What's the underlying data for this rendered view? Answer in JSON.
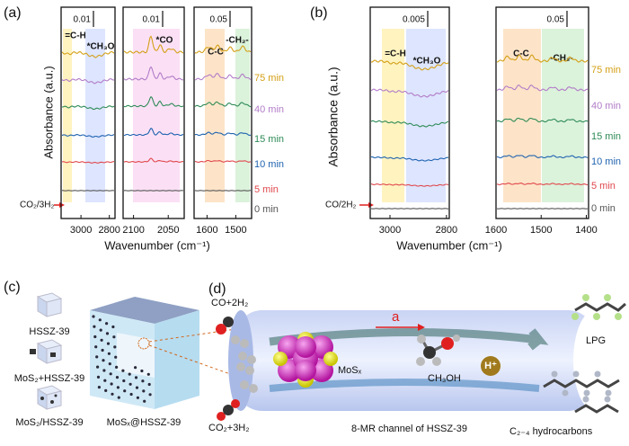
{
  "panel_a": {
    "label": "(a)",
    "y_label": "Absorbance (a.u.)",
    "x_label": "Wavenumber (cm⁻¹)",
    "gas": "CO₂/3H₂",
    "times": [
      {
        "name": "75 min",
        "color": "#d4a017"
      },
      {
        "name": "40 min",
        "color": "#b27cc8"
      },
      {
        "name": "15 min",
        "color": "#2e8b57"
      },
      {
        "name": "10 min",
        "color": "#1f63b0"
      },
      {
        "name": "5 min",
        "color": "#e0474c"
      },
      {
        "name": "0 min",
        "color": "#555555"
      }
    ],
    "subplots": [
      {
        "xlim": [
          3140,
          2760
        ],
        "xticks": [
          3000,
          2800
        ],
        "scale": "0.01",
        "bands": [
          "=C-H",
          "*CH₃O"
        ]
      },
      {
        "xlim": [
          2115,
          2027
        ],
        "xticks": [
          2100,
          2050
        ],
        "scale": "0.01",
        "bands": [
          "*CO"
        ]
      },
      {
        "xlim": [
          1645,
          1445
        ],
        "xticks": [
          1600,
          1500
        ],
        "scale": "0.05",
        "bands": [
          "C-C",
          "-CH₂-"
        ]
      }
    ]
  },
  "panel_b": {
    "label": "(b)",
    "y_label": "Absorbance (a.u.)",
    "x_label": "Wavenumber (cm⁻¹)",
    "gas": "CO/2H₂",
    "times": [
      {
        "name": "75 min",
        "color": "#d4a017"
      },
      {
        "name": "40 min",
        "color": "#b27cc8"
      },
      {
        "name": "15 min",
        "color": "#2e8b57"
      },
      {
        "name": "10 min",
        "color": "#1f63b0"
      },
      {
        "name": "5 min",
        "color": "#e0474c"
      },
      {
        "name": "0 min",
        "color": "#555555"
      }
    ],
    "subplots": [
      {
        "xlim": [
          3070,
          2790
        ],
        "xticks": [
          3000,
          2800
        ],
        "scale": "0.005",
        "bands": [
          "=C-H",
          "*CH₃O"
        ]
      },
      {
        "xlim": [
          1600,
          1395
        ],
        "xticks": [
          1600,
          1500,
          1400
        ],
        "scale": "0.05",
        "bands": [
          "C-C",
          "-CH₂-"
        ]
      }
    ]
  },
  "panel_c": {
    "label": "(c)",
    "items": [
      "HSSZ-39",
      "MoS₂+HSSZ-39",
      "MoS₂/HSSZ-39"
    ],
    "big": "MoSₓ@HSSZ-39"
  },
  "panel_d": {
    "label": "(d)",
    "feed_top": "CO+2H₂",
    "feed_bottom": "CO₂+3H₂",
    "arrow": "a",
    "cluster": "MoSₓ",
    "methanol": "CH₃OH",
    "proton": "H⁺",
    "product_top": "LPG",
    "channel": "8-MR channel of HSSZ-39",
    "product_bottom": "C₂₋₄ hydrocarbons"
  }
}
